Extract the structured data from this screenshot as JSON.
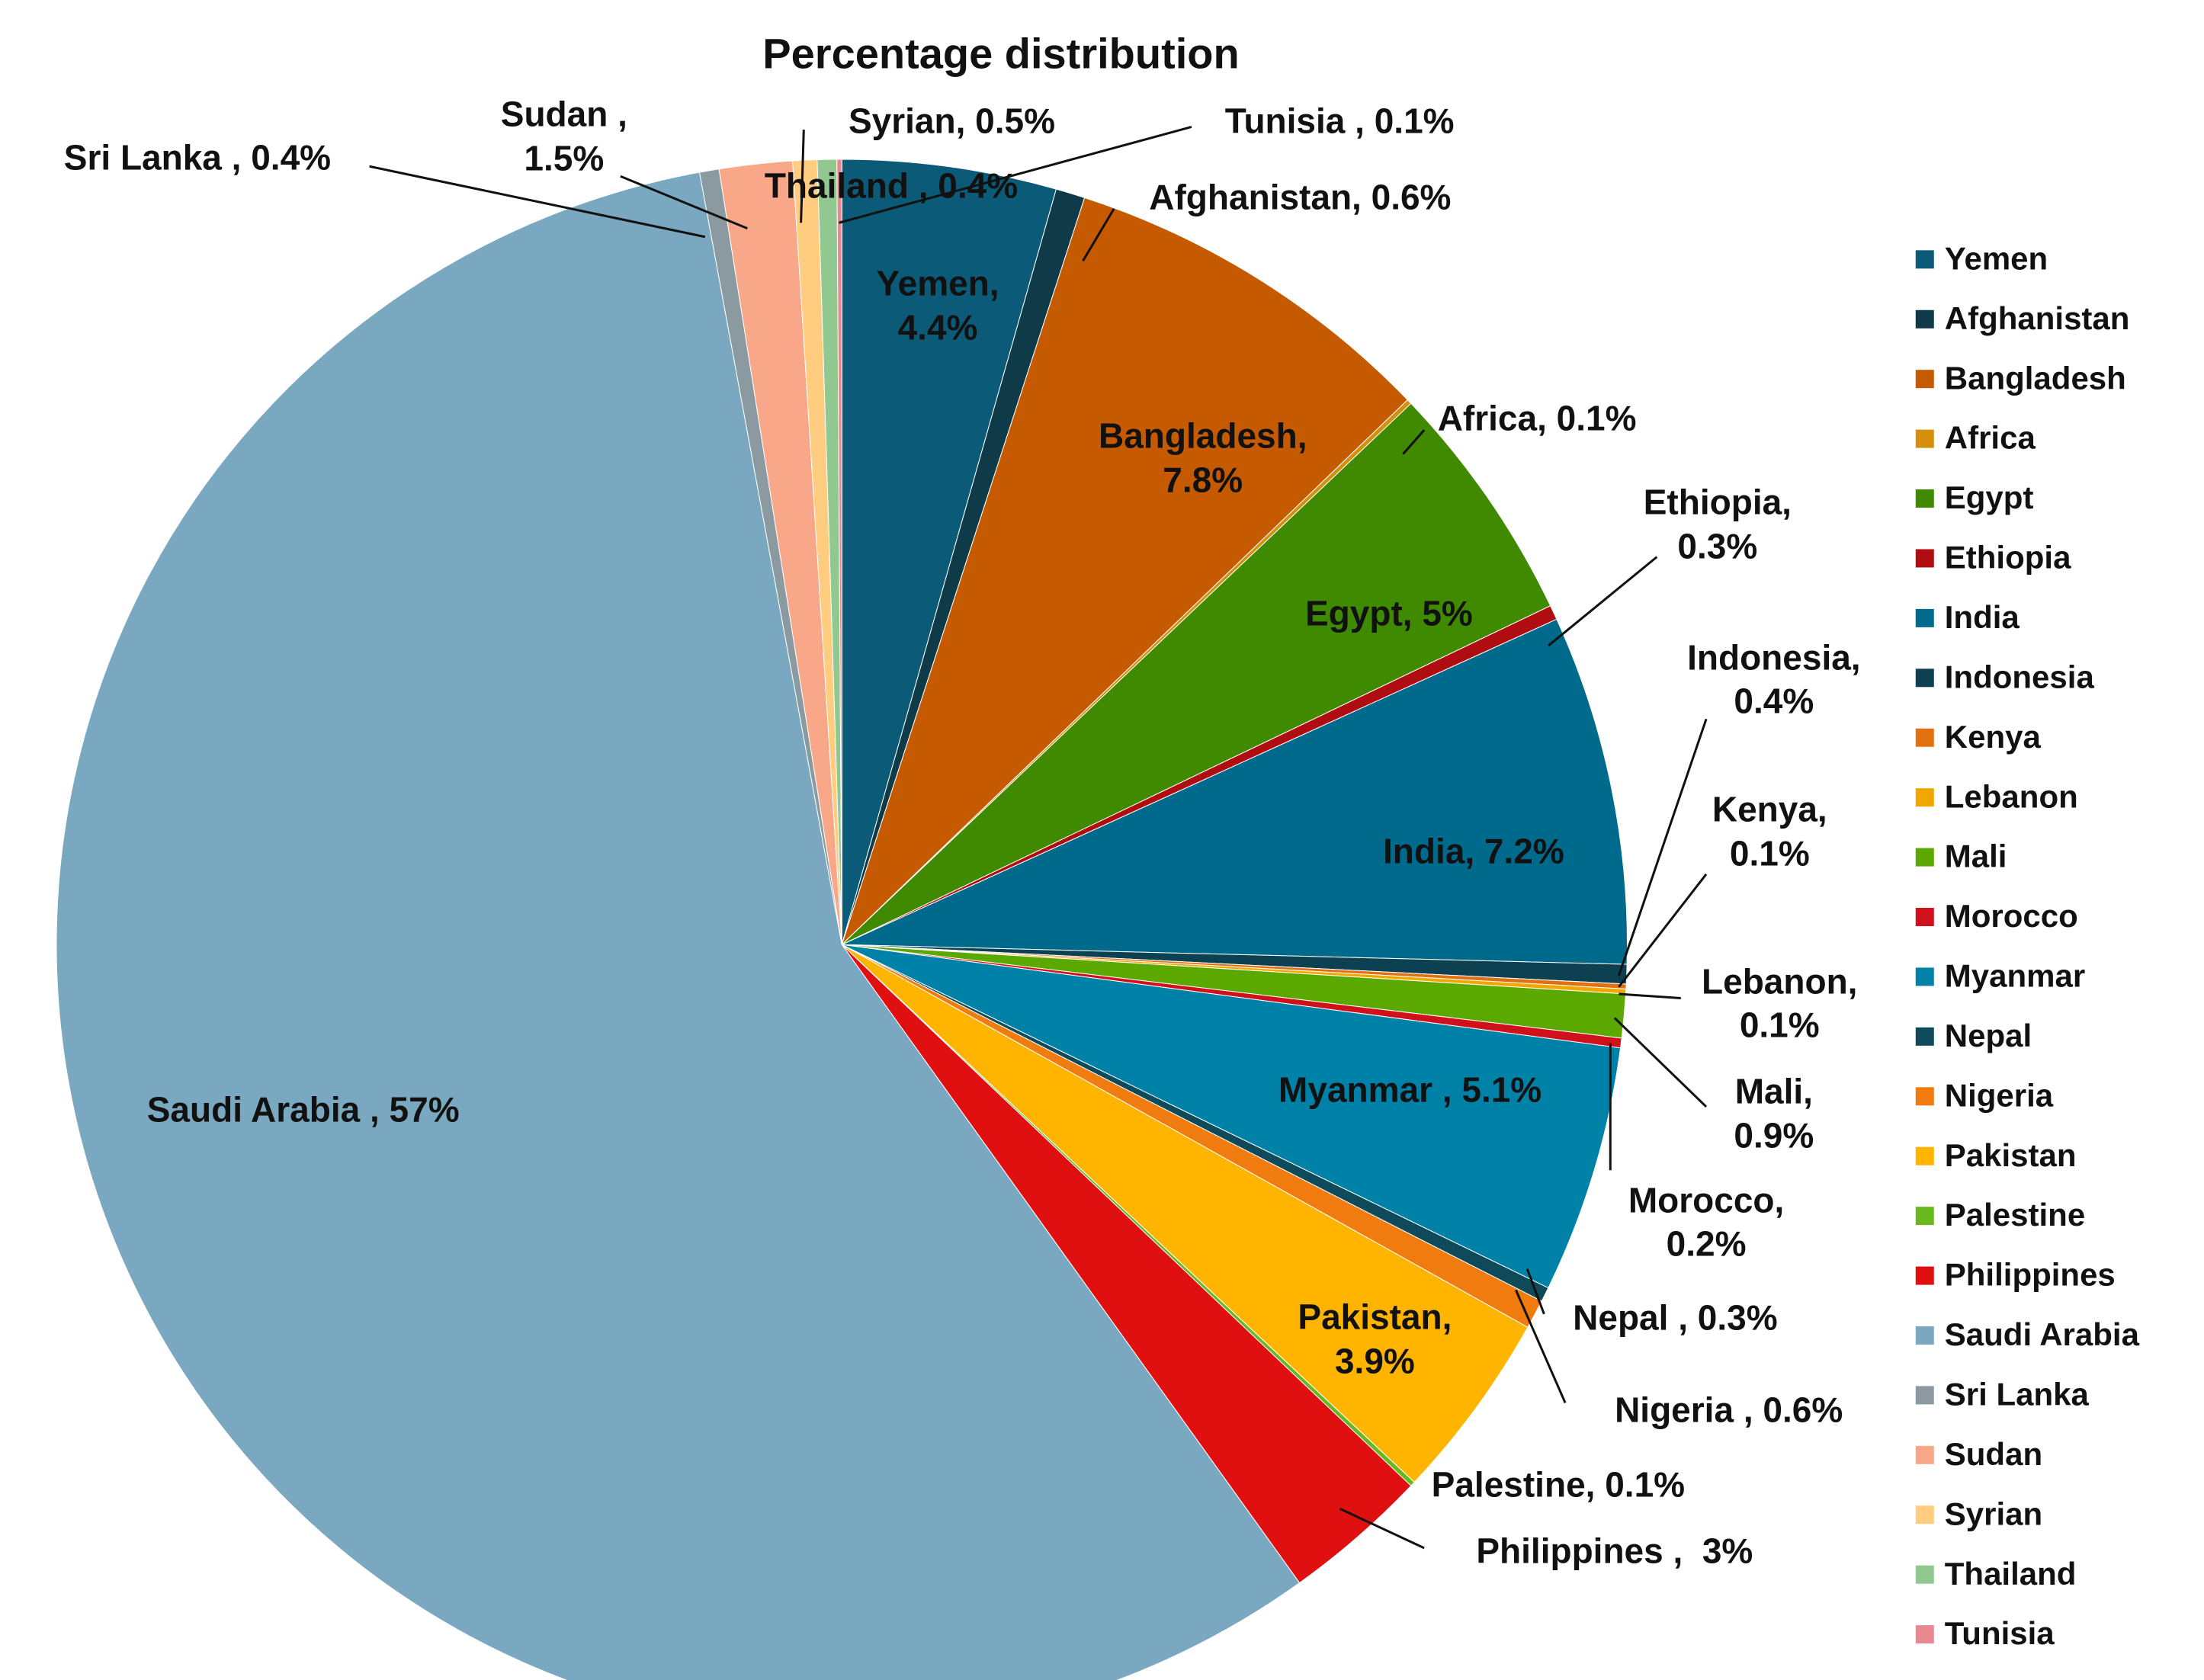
{
  "chart_data": {
    "type": "pie",
    "title": "Percentage distribution",
    "categories": [
      "Yemen",
      "Afghanistan",
      "Bangladesh",
      "Africa",
      "Egypt",
      "Ethiopia",
      "India",
      "Indonesia",
      "Kenya",
      "Lebanon",
      "Mali",
      "Morocco",
      "Myanmar",
      "Nepal",
      "Nigeria",
      "Pakistan",
      "Palestine",
      "Philippines",
      "Saudi Arabia",
      "Sri Lanka",
      "Sudan",
      "Syrian",
      "Thailand",
      "Tunisia"
    ],
    "values": [
      4.4,
      0.6,
      7.8,
      0.1,
      5,
      0.3,
      7.2,
      0.4,
      0.1,
      0.1,
      0.9,
      0.2,
      5.1,
      0.3,
      0.6,
      3.9,
      0.1,
      3,
      57,
      0.4,
      1.5,
      0.5,
      0.4,
      0.1
    ],
    "value_labels": [
      "Yemen,\n4.4%",
      "Afghanistan, 0.6%",
      "Bangladesh,\n7.8%",
      "Africa, 0.1%",
      "Egypt, 5%",
      "Ethiopia,\n0.3%",
      "India, 7.2%",
      "Indonesia,\n0.4%",
      "Kenya,\n0.1%",
      "Lebanon,\n0.1%",
      "Mali,\n0.9%",
      "Morocco,\n0.2%",
      "Myanmar , 5.1%",
      "Nepal , 0.3%",
      "Nigeria , 0.6%",
      "Pakistan,\n3.9%",
      "Palestine, 0.1%",
      "Philippines ,  3%",
      "Saudi Arabia , 57%",
      "Sri Lanka , 0.4%",
      "Sudan ,\n1.5%",
      "Syrian, 0.5%",
      "Thailand , 0.4%",
      "Tunisia , 0.1%"
    ],
    "colors": [
      "#0b5a78",
      "#0f3a48",
      "#c55a00",
      "#d4900c",
      "#3f8a00",
      "#b00d12",
      "#006a8c",
      "#0d4050",
      "#e07010",
      "#f0a800",
      "#5aa800",
      "#d0101a",
      "#0082a8",
      "#0f4a5a",
      "#f07c10",
      "#ffb400",
      "#6ab820",
      "#e01010",
      "#7aa8c0",
      "#8a9aa0",
      "#f8a888",
      "#ffcc80",
      "#90c890",
      "#e88890"
    ],
    "legend": "right"
  }
}
